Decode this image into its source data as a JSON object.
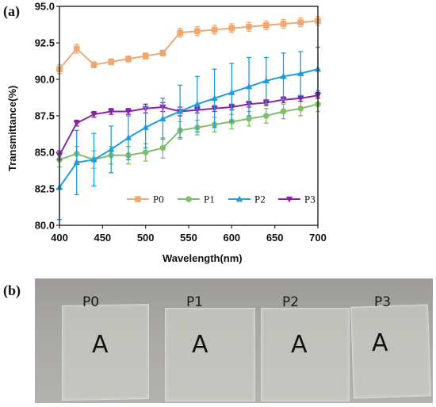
{
  "panel_a_label": "(a)",
  "panel_b_label": "(b)",
  "chart_data": {
    "type": "line",
    "xlabel": "Wavelength(nm)",
    "ylabel": "Transmittance(%)",
    "xlim": [
      400,
      700
    ],
    "ylim": [
      80.0,
      95.0
    ],
    "x_ticks": [
      "400",
      "450",
      "500",
      "550",
      "600",
      "650",
      "700"
    ],
    "y_ticks": [
      "80.0",
      "82.5",
      "85.0",
      "87.5",
      "90.0",
      "92.5",
      "95.0"
    ],
    "legend_position": "lower-right",
    "x": [
      400,
      420,
      440,
      460,
      480,
      500,
      520,
      540,
      560,
      580,
      600,
      620,
      640,
      660,
      680,
      700
    ],
    "series": [
      {
        "name": "P0",
        "color": "#f0a870",
        "marker": "square",
        "values": [
          90.7,
          92.1,
          91.0,
          91.2,
          91.4,
          91.6,
          91.8,
          93.2,
          93.3,
          93.4,
          93.5,
          93.6,
          93.7,
          93.8,
          93.9,
          94.0
        ],
        "errors": [
          0.3,
          0.3,
          0.2,
          0.2,
          0.2,
          0.2,
          0.2,
          0.3,
          0.3,
          0.3,
          0.3,
          0.3,
          0.3,
          0.3,
          0.3,
          0.3
        ]
      },
      {
        "name": "P1",
        "color": "#7fbf6a",
        "marker": "circle",
        "values": [
          84.5,
          84.9,
          84.5,
          84.8,
          84.8,
          85.0,
          85.3,
          86.5,
          86.7,
          86.9,
          87.1,
          87.3,
          87.5,
          87.8,
          88.0,
          88.3
        ],
        "errors": [
          0.5,
          0.5,
          0.6,
          0.6,
          0.6,
          0.6,
          0.7,
          0.6,
          0.5,
          0.5,
          0.5,
          0.5,
          0.5,
          0.5,
          0.5,
          0.5
        ]
      },
      {
        "name": "P2",
        "color": "#1f9be0",
        "marker": "triangle-up",
        "values": [
          82.6,
          84.3,
          84.5,
          85.2,
          86.0,
          86.7,
          87.3,
          87.8,
          88.3,
          88.7,
          89.1,
          89.5,
          89.9,
          90.2,
          90.4,
          90.7
        ],
        "errors": [
          2.2,
          2.2,
          1.8,
          1.6,
          1.5,
          1.4,
          1.4,
          1.8,
          1.9,
          2.0,
          2.0,
          2.0,
          1.6,
          1.6,
          1.5,
          1.5
        ]
      },
      {
        "name": "P3",
        "color": "#8a22a8",
        "marker": "triangle-down",
        "values": [
          84.8,
          87.0,
          87.6,
          87.8,
          87.8,
          88.0,
          88.1,
          87.8,
          87.9,
          88.0,
          88.1,
          88.3,
          88.4,
          88.6,
          88.7,
          88.9
        ],
        "errors": [
          0.3,
          0.2,
          0.2,
          0.2,
          0.2,
          0.3,
          0.3,
          0.3,
          0.2,
          0.2,
          0.2,
          0.2,
          0.2,
          0.2,
          0.2,
          0.2
        ]
      }
    ]
  },
  "photo": {
    "samples": [
      {
        "name": "P0",
        "letter": "A"
      },
      {
        "name": "P1",
        "letter": "A"
      },
      {
        "name": "P2",
        "letter": "A"
      },
      {
        "name": "P3",
        "letter": "A"
      }
    ]
  }
}
